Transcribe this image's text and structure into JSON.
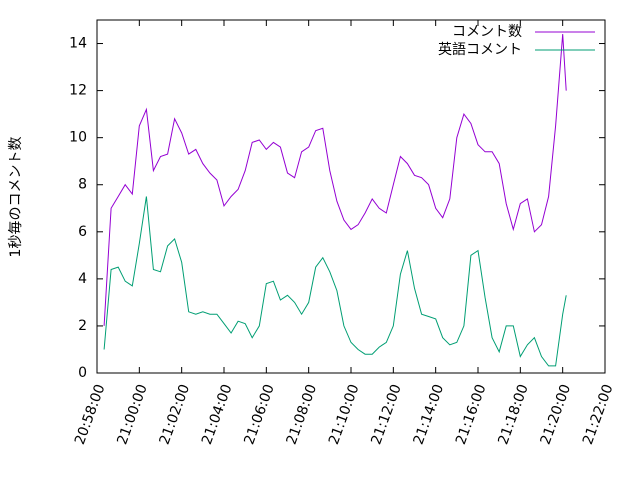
{
  "chart_data": {
    "type": "line",
    "ylabel": "1秒毎のコメント数",
    "x": [
      "20:58:20",
      "20:58:40",
      "20:59:00",
      "20:59:20",
      "20:59:40",
      "21:00:00",
      "21:00:20",
      "21:00:40",
      "21:01:00",
      "21:01:20",
      "21:01:40",
      "21:02:00",
      "21:02:20",
      "21:02:40",
      "21:03:00",
      "21:03:20",
      "21:03:40",
      "21:04:00",
      "21:04:20",
      "21:04:40",
      "21:05:00",
      "21:05:20",
      "21:05:40",
      "21:06:00",
      "21:06:20",
      "21:06:40",
      "21:07:00",
      "21:07:20",
      "21:07:40",
      "21:08:00",
      "21:08:20",
      "21:08:40",
      "21:09:00",
      "21:09:20",
      "21:09:40",
      "21:10:00",
      "21:10:20",
      "21:10:40",
      "21:11:00",
      "21:11:20",
      "21:11:40",
      "21:12:00",
      "21:12:20",
      "21:12:40",
      "21:13:00",
      "21:13:20",
      "21:13:40",
      "21:14:00",
      "21:14:20",
      "21:14:40",
      "21:15:00",
      "21:15:20",
      "21:15:40",
      "21:16:00",
      "21:16:20",
      "21:16:40",
      "21:17:00",
      "21:17:20",
      "21:17:40",
      "21:18:00",
      "21:18:20",
      "21:18:40",
      "21:19:00",
      "21:19:20",
      "21:19:40",
      "21:20:00",
      "21:20:10"
    ],
    "series": [
      {
        "name": "コメント数",
        "color": "#9400d3",
        "values": [
          2.0,
          7.0,
          7.5,
          8.0,
          7.6,
          10.5,
          11.2,
          8.6,
          9.2,
          9.3,
          10.8,
          10.2,
          9.3,
          9.5,
          8.9,
          8.5,
          8.2,
          7.1,
          7.5,
          7.8,
          8.6,
          9.8,
          9.9,
          9.5,
          9.8,
          9.6,
          8.5,
          8.3,
          9.4,
          9.6,
          10.3,
          10.4,
          8.6,
          7.3,
          6.5,
          6.1,
          6.3,
          6.8,
          7.4,
          7.0,
          6.8,
          8.0,
          9.2,
          8.9,
          8.4,
          8.3,
          8.0,
          7.0,
          6.6,
          7.4,
          10.0,
          11.0,
          10.6,
          9.7,
          9.4,
          9.4,
          8.9,
          7.2,
          6.1,
          7.2,
          7.4,
          6.0,
          6.3,
          7.5,
          10.5,
          14.4,
          12.0
        ]
      },
      {
        "name": "英語コメント",
        "color": "#009e73",
        "values": [
          1.0,
          4.4,
          4.5,
          3.9,
          3.7,
          5.5,
          7.5,
          4.4,
          4.3,
          5.4,
          5.7,
          4.7,
          2.6,
          2.5,
          2.6,
          2.5,
          2.5,
          2.1,
          1.7,
          2.2,
          2.1,
          1.5,
          2.0,
          3.8,
          3.9,
          3.1,
          3.3,
          3.0,
          2.5,
          3.0,
          4.5,
          4.9,
          4.3,
          3.5,
          2.0,
          1.3,
          1.0,
          0.8,
          0.8,
          1.1,
          1.3,
          2.0,
          4.2,
          5.2,
          3.6,
          2.5,
          2.4,
          2.3,
          1.5,
          1.2,
          1.3,
          2.0,
          5.0,
          5.2,
          3.2,
          1.5,
          0.9,
          2.0,
          2.0,
          0.7,
          1.2,
          1.5,
          0.7,
          0.3,
          0.3,
          2.5,
          3.3
        ]
      }
    ],
    "xlim": [
      "20:58:00",
      "21:22:00"
    ],
    "xticks": [
      "20:58:00",
      "21:00:00",
      "21:02:00",
      "21:04:00",
      "21:06:00",
      "21:08:00",
      "21:10:00",
      "21:12:00",
      "21:14:00",
      "21:16:00",
      "21:18:00",
      "21:20:00",
      "21:22:00"
    ],
    "ylim": [
      0,
      15
    ],
    "yticks": [
      0,
      2,
      4,
      6,
      8,
      10,
      12,
      14
    ],
    "legend": "top-right"
  }
}
